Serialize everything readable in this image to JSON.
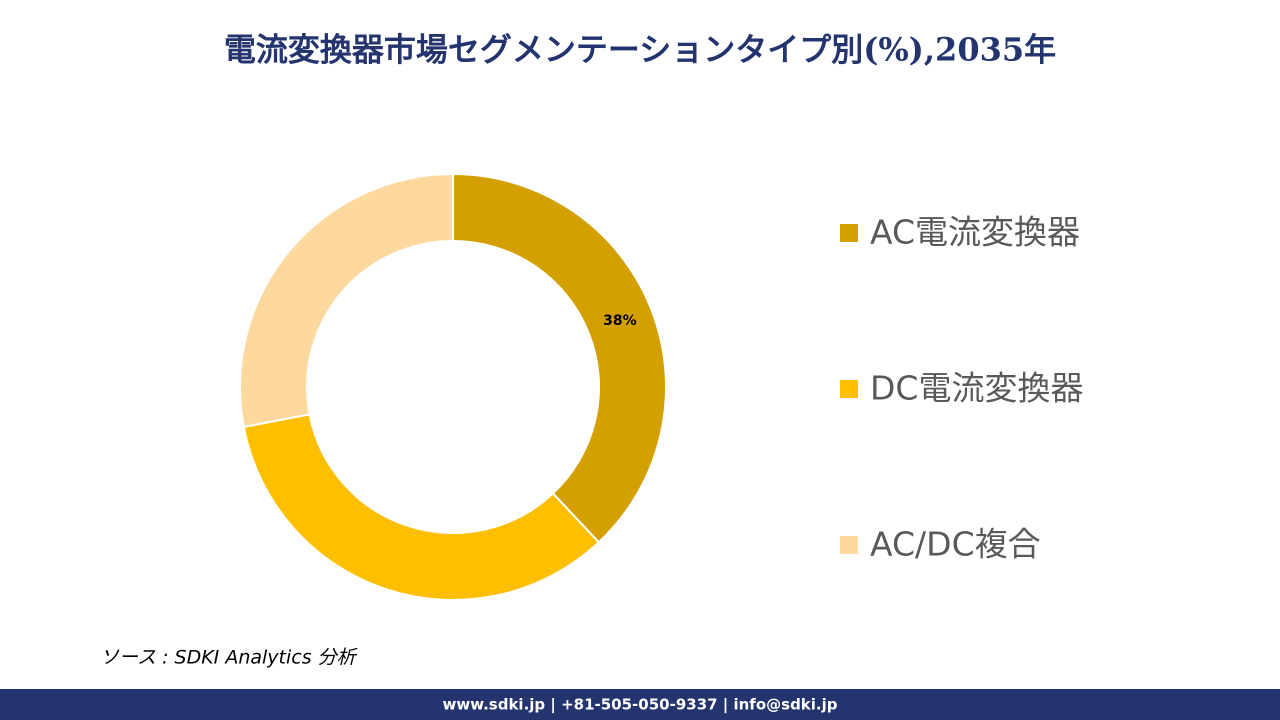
{
  "chart_data": {
    "type": "donut",
    "title": "電流変換器市場セグメンテーションタイプ別(%),2035年",
    "categories": [
      "AC電流変換器",
      "DC電流変換器",
      "AC/DC複合"
    ],
    "values": [
      38,
      34,
      28
    ],
    "value_labels": [
      "38%",
      null,
      null
    ],
    "colors": [
      "#d4a000",
      "#fdbf00",
      "#fdd9a0"
    ],
    "legend": "right"
  },
  "source": "ソース : SDKI Analytics 分析",
  "footer": "www.sdki.jp | +81-505-050-9337 | info@sdki.jp"
}
